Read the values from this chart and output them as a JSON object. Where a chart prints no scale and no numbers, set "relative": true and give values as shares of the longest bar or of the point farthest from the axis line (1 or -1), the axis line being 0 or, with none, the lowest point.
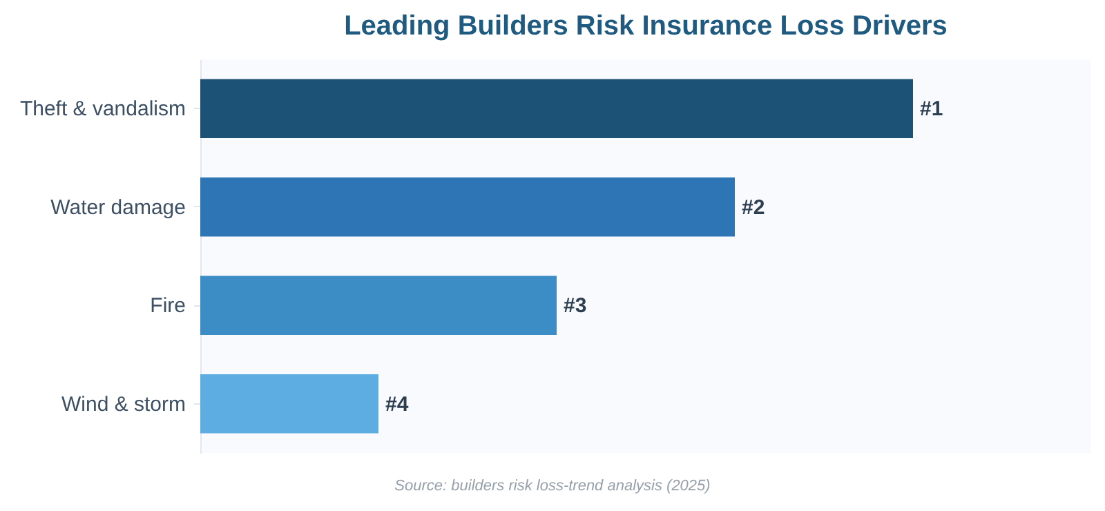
{
  "chart_data": {
    "type": "bar",
    "orientation": "horizontal",
    "relative": true,
    "title": "Leading Builders Risk Insurance Loss Drivers",
    "categories": [
      "Theft & vandalism",
      "Water damage",
      "Fire",
      "Wind & storm"
    ],
    "values": [
      1,
      0.75,
      0.5,
      0.25
    ],
    "colors": [
      "#1b5276",
      "#2e75b6",
      "#3c8dc5",
      "#5dade2"
    ],
    "annotations": [
      {
        "text": "#1",
        "x": 1,
        "y": "Theft & vandalism"
      },
      {
        "text": "#2",
        "x": 0.75,
        "y": "Water damage"
      },
      {
        "text": "#3",
        "x": 0.5,
        "y": "Fire"
      },
      {
        "text": "#4",
        "x": 0.25,
        "y": "Wind & storm"
      },
      "Source: builders risk loss-trend analysis (2025)"
    ]
  }
}
